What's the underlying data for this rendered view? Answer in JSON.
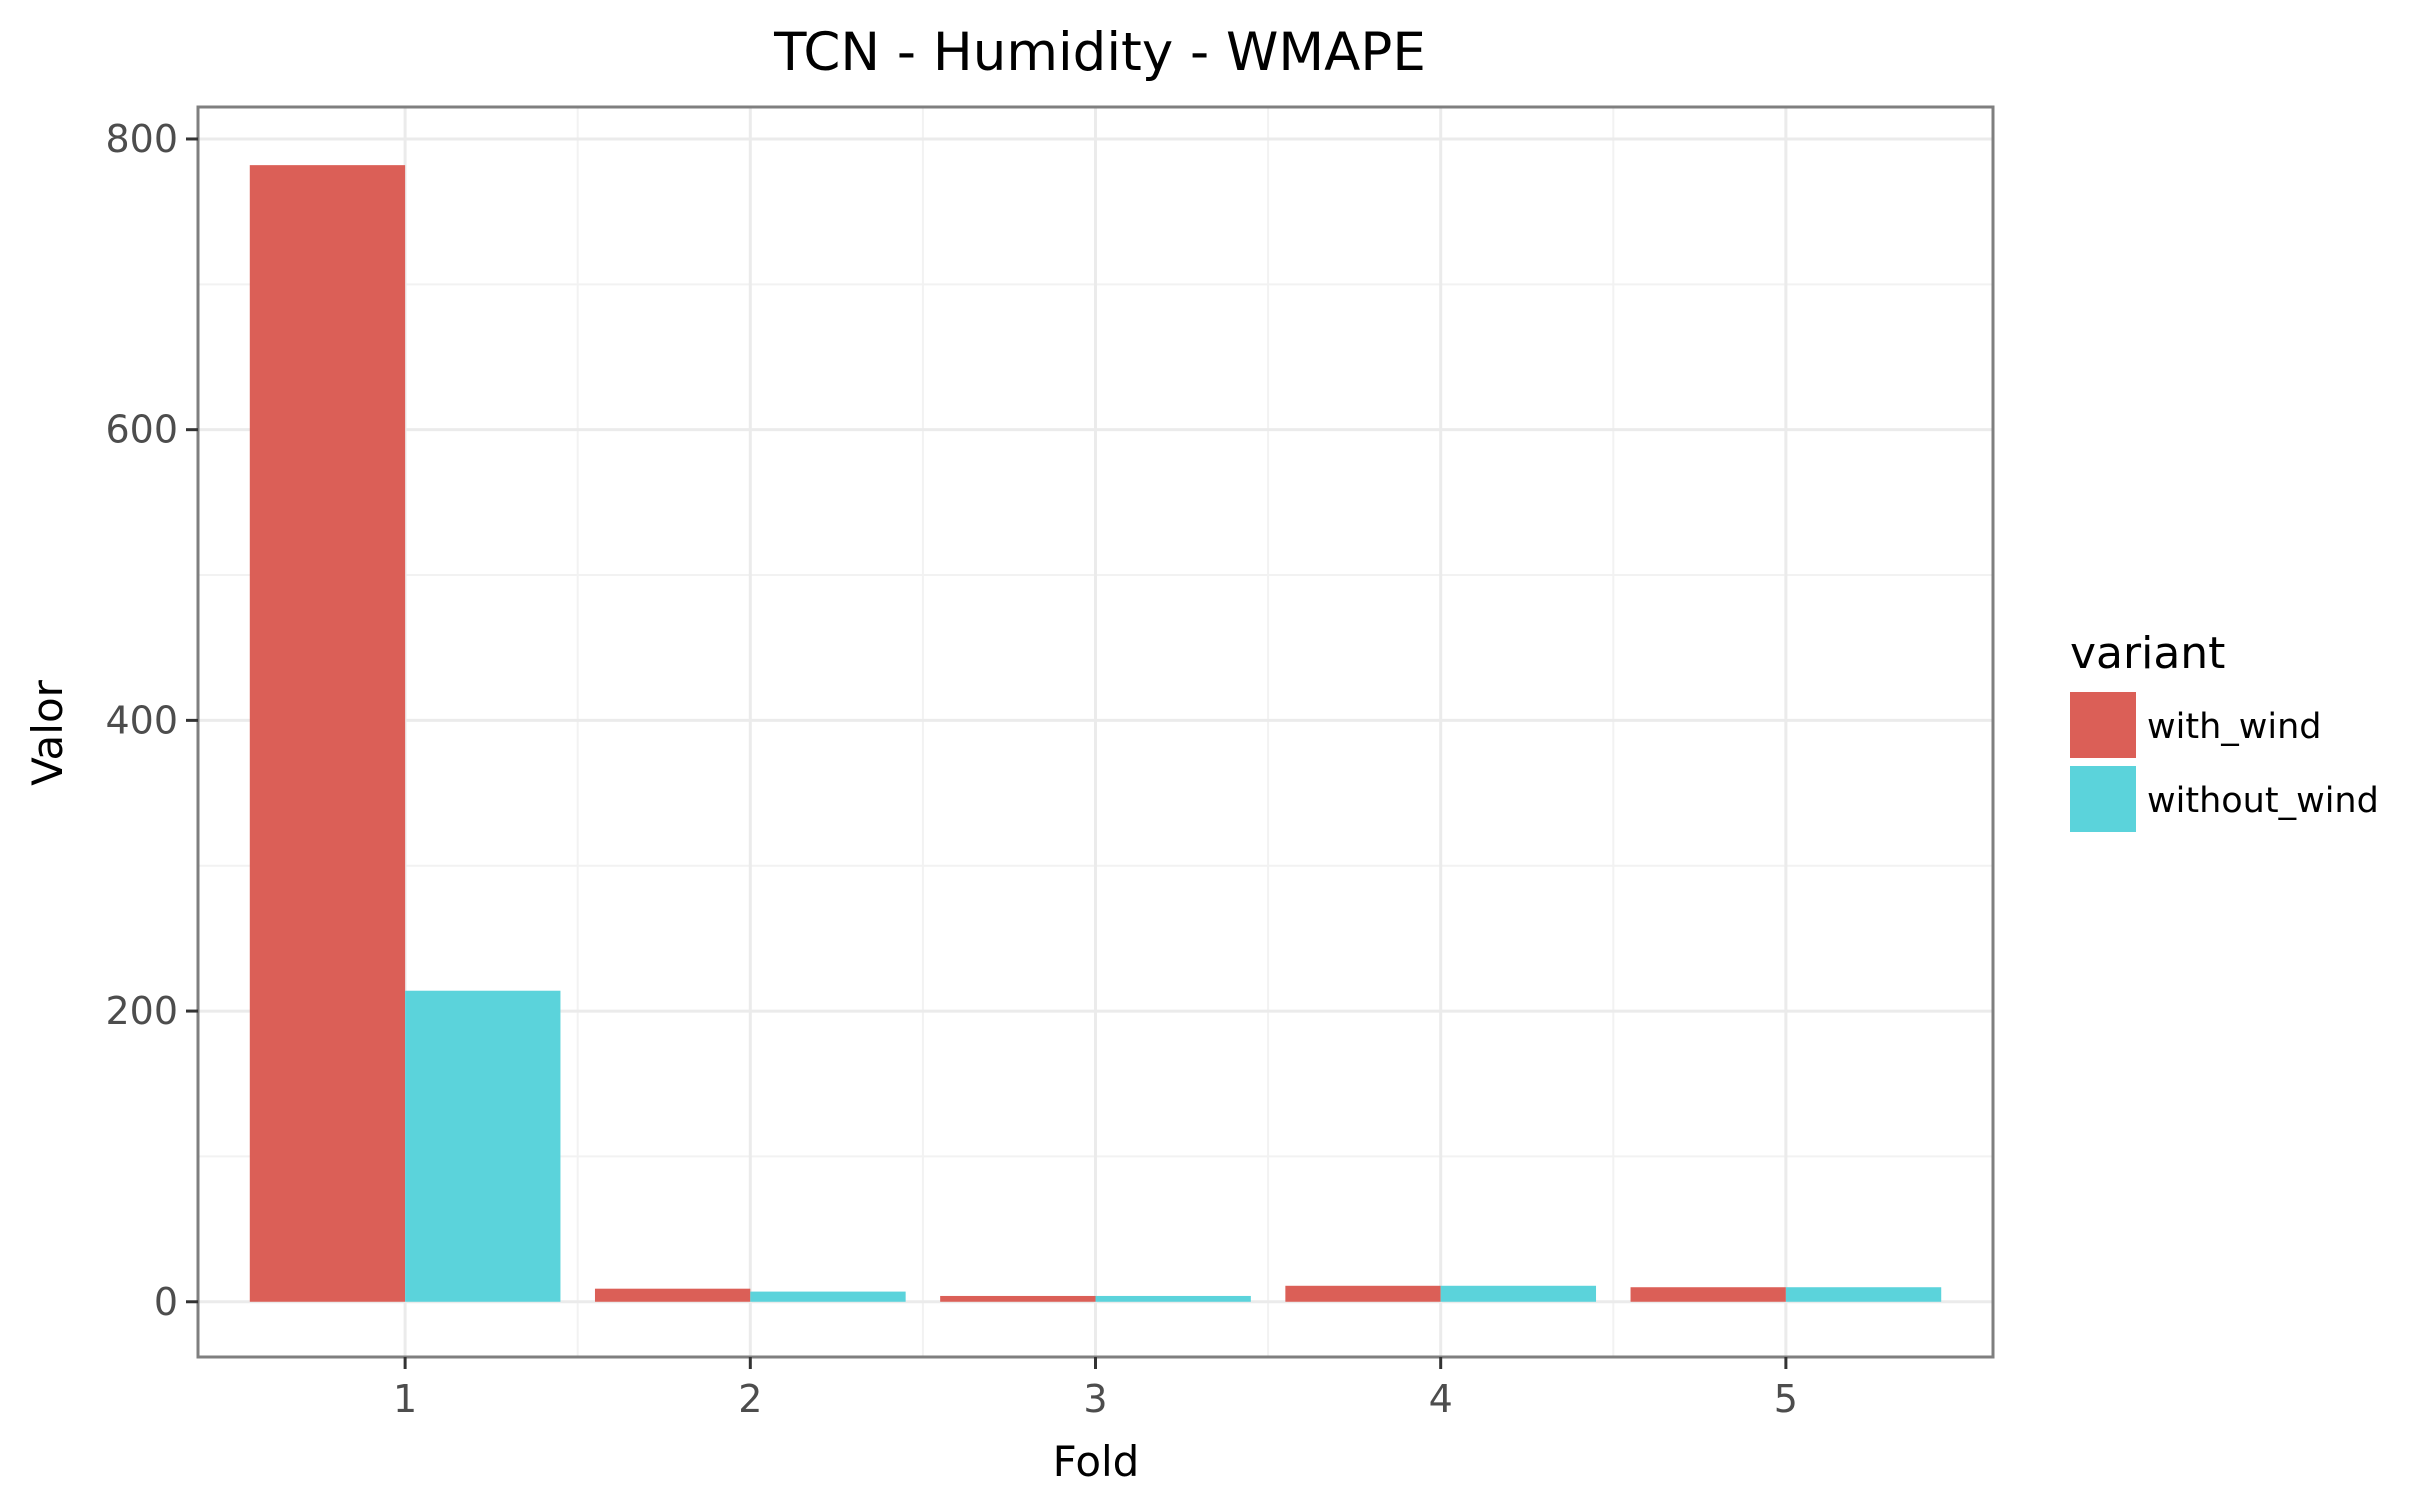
{
  "chart_data": {
    "type": "bar",
    "title": "TCN - Humidity - WMAPE",
    "xlabel": "Fold",
    "ylabel": "Valor",
    "categories": [
      "1",
      "2",
      "3",
      "4",
      "5"
    ],
    "series": [
      {
        "name": "with_wind",
        "color": "#db5f57",
        "values": [
          782,
          9,
          4,
          11,
          10
        ]
      },
      {
        "name": "without_wind",
        "color": "#5bd3db",
        "values": [
          214,
          7,
          4,
          11,
          10
        ]
      }
    ],
    "ylim": [
      -38,
      822
    ],
    "yticks": [
      0,
      200,
      400,
      600,
      800
    ],
    "ytick_labels": [
      "0",
      "200",
      "400",
      "600",
      "800"
    ],
    "grid": true,
    "legend": {
      "title": "variant",
      "position": "right"
    }
  }
}
